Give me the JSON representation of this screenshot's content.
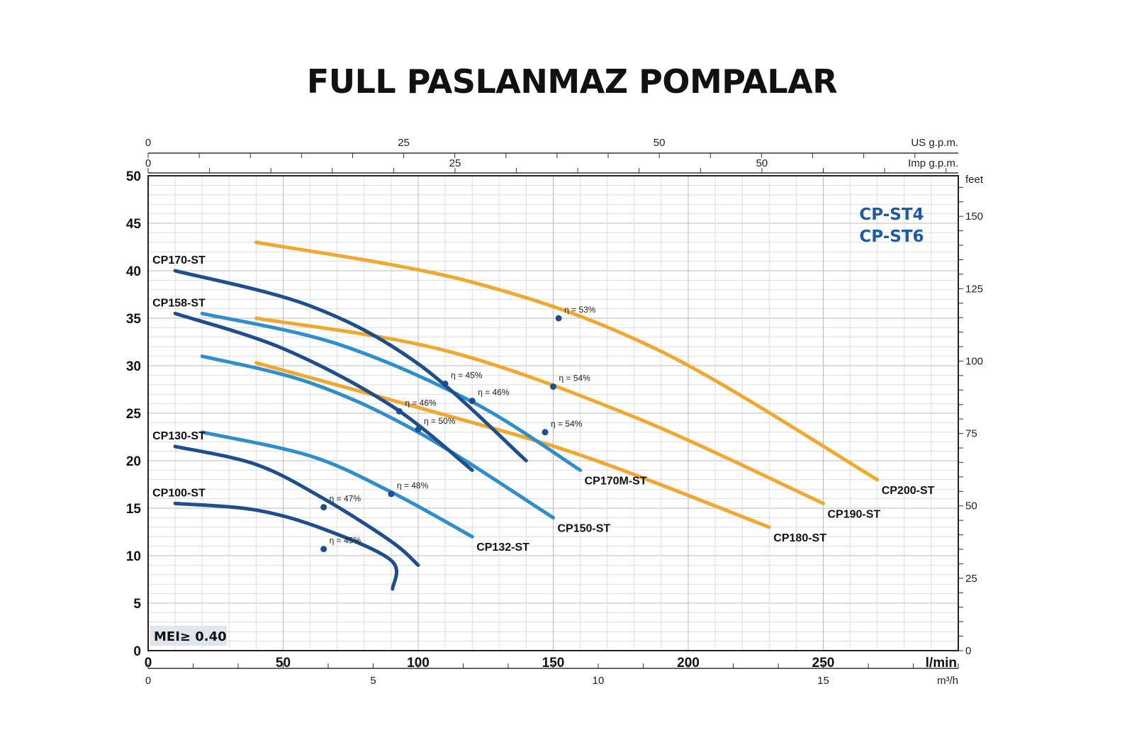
{
  "page": {
    "title": "FULL PASLANMAZ POMPALAR"
  },
  "chart_data": {
    "type": "line",
    "series_titles": [
      "CP-ST4",
      "CP-ST6"
    ],
    "badge": "MEI≥ 0.40",
    "x_axis": {
      "label": "l/min",
      "range": [
        0,
        300
      ],
      "ticks": [
        "0",
        "50",
        "100",
        "150",
        "200",
        "250"
      ],
      "secondary_bottom": {
        "label": "m³/h",
        "range": [
          0,
          18
        ],
        "ticks": [
          "0",
          "5",
          "10",
          "15"
        ]
      },
      "secondary_top_us": {
        "label": "US g.p.m.",
        "range": [
          0,
          79.25
        ],
        "ticks": [
          "0",
          "25",
          "50"
        ]
      },
      "secondary_top_imp": {
        "label": "Imp g.p.m.",
        "range": [
          0,
          66
        ],
        "ticks": [
          "0",
          "25",
          "50"
        ]
      }
    },
    "y_axis": {
      "range": [
        0,
        50
      ],
      "ticks": [
        "0",
        "5",
        "10",
        "15",
        "20",
        "25",
        "30",
        "35",
        "40",
        "45",
        "50"
      ],
      "secondary_right": {
        "label": "feet",
        "range": [
          0,
          164
        ],
        "ticks": [
          "0",
          "25",
          "50",
          "75",
          "100",
          "125",
          "150"
        ]
      }
    },
    "grid": true,
    "colors": {
      "orange": "#f0a830",
      "dark_blue": "#1f4e8c",
      "light_blue": "#2f8fcc",
      "title_blue": "#1f5aa6"
    },
    "series": [
      {
        "name": "CP100-ST",
        "color": "dark_blue",
        "points": [
          [
            10,
            15.5
          ],
          [
            40,
            14.8
          ],
          [
            65,
            12.8
          ],
          [
            90,
            9.5
          ],
          [
            90.5,
            6.5
          ]
        ]
      },
      {
        "name": "CP130-ST",
        "color": "dark_blue",
        "points": [
          [
            10,
            21.5
          ],
          [
            40,
            19.6
          ],
          [
            65,
            16
          ],
          [
            90,
            11.5
          ],
          [
            100,
            9
          ]
        ]
      },
      {
        "name": "CP132-ST",
        "color": "light_blue",
        "points": [
          [
            20,
            23
          ],
          [
            60,
            20.5
          ],
          [
            90,
            16.7
          ],
          [
            120,
            12
          ]
        ]
      },
      {
        "name": "CP150-ST",
        "color": "light_blue",
        "points": [
          [
            20,
            31
          ],
          [
            60,
            28.2
          ],
          [
            100,
            23
          ],
          [
            150,
            14
          ]
        ]
      },
      {
        "name": "CP158-ST",
        "color": "dark_blue",
        "points": [
          [
            10,
            35.5
          ],
          [
            50,
            31.8
          ],
          [
            90,
            25.8
          ],
          [
            120,
            19
          ]
        ]
      },
      {
        "name": "CP170-ST",
        "color": "dark_blue",
        "points": [
          [
            10,
            40
          ],
          [
            60,
            36.3
          ],
          [
            100,
            30.2
          ],
          [
            140,
            20
          ]
        ]
      },
      {
        "name": "CP170M-ST",
        "color": "light_blue",
        "points": [
          [
            20,
            35.5
          ],
          [
            70,
            32.3
          ],
          [
            120,
            26.2
          ],
          [
            160,
            19
          ]
        ]
      },
      {
        "name": "CP180-ST",
        "color": "orange",
        "points": [
          [
            40,
            30.3
          ],
          [
            100,
            25.6
          ],
          [
            160,
            20.6
          ],
          [
            230,
            13
          ]
        ]
      },
      {
        "name": "CP190-ST",
        "color": "orange",
        "points": [
          [
            40,
            35
          ],
          [
            110,
            31.6
          ],
          [
            180,
            24.6
          ],
          [
            250,
            15.5
          ]
        ]
      },
      {
        "name": "CP200-ST",
        "color": "orange",
        "points": [
          [
            40,
            43
          ],
          [
            120,
            38.8
          ],
          [
            190,
            31.5
          ],
          [
            270,
            18
          ]
        ]
      }
    ],
    "efficiency_points": [
      {
        "label": "η = 45%",
        "x": 65,
        "y": 10.7
      },
      {
        "label": "η = 47%",
        "x": 65,
        "y": 15.1
      },
      {
        "label": "η = 48%",
        "x": 90,
        "y": 16.5
      },
      {
        "label": "η = 50%",
        "x": 100,
        "y": 23.3
      },
      {
        "label": "η = 46%",
        "x": 93,
        "y": 25.2
      },
      {
        "label": "η = 45%",
        "x": 110,
        "y": 28.1
      },
      {
        "label": "η = 46%",
        "x": 120,
        "y": 26.3
      },
      {
        "label": "η = 54%",
        "x": 147,
        "y": 23
      },
      {
        "label": "η = 54%",
        "x": 150,
        "y": 27.8
      },
      {
        "label": "η = 53%",
        "x": 152,
        "y": 35
      }
    ]
  }
}
